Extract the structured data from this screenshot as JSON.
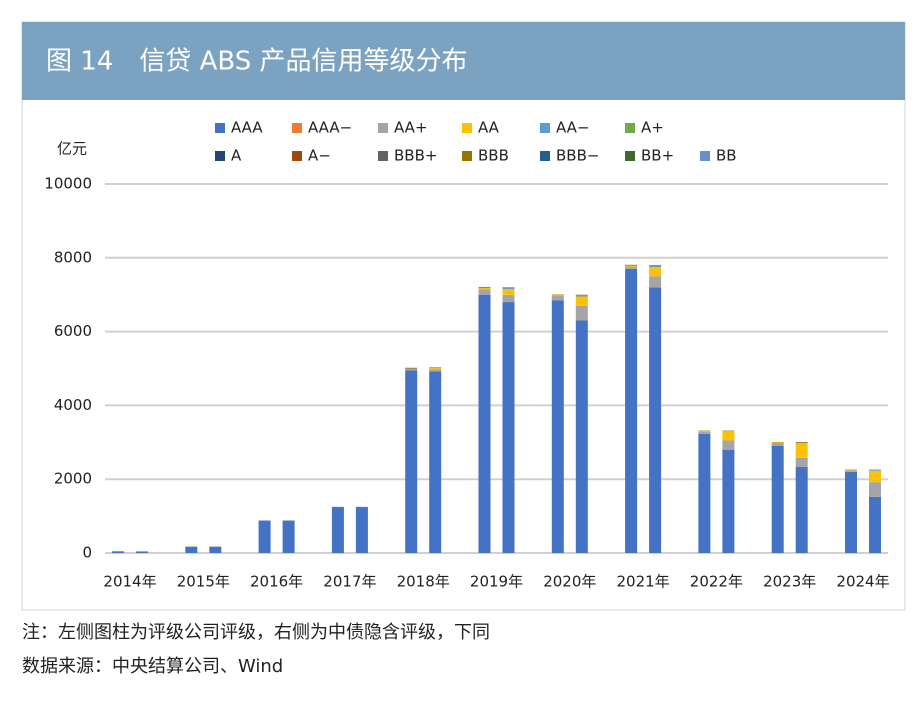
{
  "header": {
    "title": "图 14　信贷 ABS 产品信用等级分布"
  },
  "chart_data": {
    "type": "bar",
    "stacked": true,
    "y_label": "亿元",
    "categories": [
      "2014年",
      null,
      "2015年",
      null,
      "2016年",
      null,
      "2017年",
      null,
      "2018年",
      null,
      "2019年",
      null,
      "2020年",
      null,
      "2021年",
      null,
      "2022年",
      null,
      "2023年",
      null,
      "2024年",
      null
    ],
    "ylim": [
      0,
      10000
    ],
    "yticks": [
      0,
      2000,
      4000,
      6000,
      8000,
      10000
    ],
    "grid": true,
    "series": [
      {
        "name": "AAA",
        "color": "#4472c4",
        "values": [
          45,
          40,
          170,
          170,
          880,
          880,
          1250,
          1250,
          4950,
          4920,
          7000,
          6800,
          6850,
          6300,
          7700,
          7200,
          3230,
          2800,
          2900,
          2330,
          2200,
          1520
        ]
      },
      {
        "name": "AAA−",
        "color": "#ed7d31",
        "values": [
          0,
          0,
          0,
          0,
          0,
          0,
          0,
          0,
          0,
          0,
          0,
          0,
          0,
          0,
          0,
          0,
          0,
          0,
          0,
          0,
          0,
          0
        ]
      },
      {
        "name": "AA+",
        "color": "#a5a5a5",
        "values": [
          5,
          5,
          10,
          10,
          0,
          0,
          0,
          0,
          50,
          60,
          150,
          200,
          130,
          400,
          60,
          300,
          60,
          250,
          80,
          250,
          40,
          400
        ]
      },
      {
        "name": "AA",
        "color": "#ffc000",
        "values": [
          0,
          0,
          0,
          0,
          0,
          0,
          0,
          0,
          0,
          30,
          30,
          150,
          20,
          250,
          30,
          250,
          20,
          250,
          20,
          400,
          10,
          310
        ]
      },
      {
        "name": "AA−",
        "color": "#5b9bd5",
        "values": [
          0,
          0,
          0,
          0,
          0,
          0,
          0,
          0,
          0,
          0,
          10,
          30,
          0,
          40,
          0,
          30,
          0,
          10,
          0,
          10,
          0,
          20
        ]
      },
      {
        "name": "A+",
        "color": "#70ad47",
        "values": [
          0,
          0,
          0,
          0,
          0,
          0,
          0,
          0,
          0,
          0,
          0,
          0,
          0,
          0,
          0,
          0,
          0,
          0,
          0,
          0,
          0,
          0
        ]
      },
      {
        "name": "A",
        "color": "#264478",
        "values": [
          0,
          0,
          0,
          0,
          0,
          0,
          0,
          0,
          0,
          0,
          0,
          0,
          0,
          0,
          0,
          0,
          0,
          0,
          0,
          0,
          0,
          0
        ]
      },
      {
        "name": "A−",
        "color": "#9e480e",
        "values": [
          0,
          0,
          0,
          0,
          0,
          0,
          0,
          0,
          0,
          0,
          0,
          0,
          0,
          0,
          0,
          0,
          0,
          0,
          0,
          0,
          0,
          0
        ]
      },
      {
        "name": "BBB+",
        "color": "#636363",
        "values": [
          0,
          0,
          0,
          0,
          0,
          0,
          0,
          0,
          0,
          0,
          0,
          0,
          0,
          0,
          0,
          0,
          0,
          0,
          0,
          0,
          0,
          0
        ]
      },
      {
        "name": "BBB",
        "color": "#997300",
        "values": [
          0,
          0,
          0,
          0,
          0,
          0,
          0,
          0,
          20,
          20,
          20,
          20,
          10,
          10,
          20,
          20,
          10,
          10,
          10,
          20,
          10,
          10
        ]
      },
      {
        "name": "BBB−",
        "color": "#255e91",
        "values": [
          0,
          0,
          0,
          0,
          0,
          0,
          0,
          0,
          0,
          0,
          0,
          0,
          0,
          0,
          0,
          0,
          0,
          0,
          0,
          0,
          0,
          0
        ]
      },
      {
        "name": "BB+",
        "color": "#43682b",
        "values": [
          0,
          0,
          0,
          0,
          0,
          0,
          0,
          0,
          0,
          0,
          0,
          0,
          0,
          0,
          0,
          0,
          0,
          0,
          0,
          0,
          0,
          0
        ]
      },
      {
        "name": "BB",
        "color": "#698ed0",
        "values": [
          0,
          0,
          0,
          0,
          0,
          0,
          0,
          0,
          0,
          0,
          0,
          0,
          0,
          0,
          0,
          0,
          0,
          0,
          0,
          0,
          0,
          0
        ]
      }
    ]
  },
  "notes": [
    "注：左侧图柱为评级公司评级，右侧为中债隐含评级，下同",
    "数据来源：中央结算公司、Wind"
  ]
}
